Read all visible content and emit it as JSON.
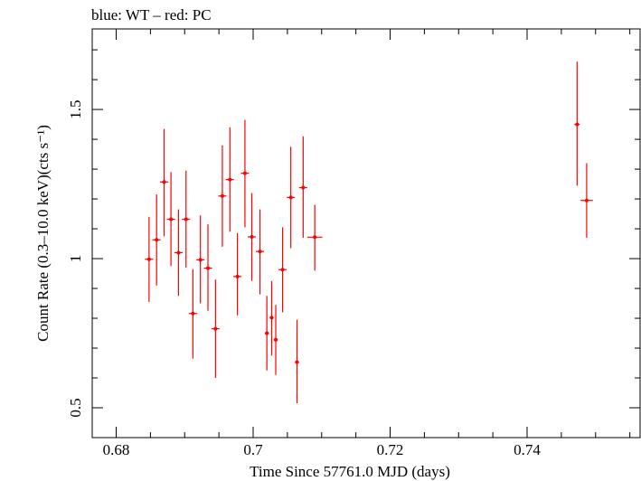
{
  "chart_data": {
    "type": "scatter",
    "title": "blue: WT – red: PC",
    "xlabel": "Time Since 57761.0 MJD (days)",
    "ylabel": "Count Rate (0.3–10.0 keV)(cts s⁻¹)",
    "xlim": [
      0.6765,
      0.7565
    ],
    "ylim": [
      0.4,
      1.77
    ],
    "x_ticks": [
      {
        "value": 0.68,
        "label": "0.68"
      },
      {
        "value": 0.7,
        "label": "0.7"
      },
      {
        "value": 0.72,
        "label": "0.72"
      },
      {
        "value": 0.74,
        "label": "0.74"
      }
    ],
    "y_ticks": [
      {
        "value": 0.5,
        "label": "0.5"
      },
      {
        "value": 1.0,
        "label": "1"
      },
      {
        "value": 1.5,
        "label": "1.5"
      }
    ],
    "grid": false,
    "series": [
      {
        "color": "#ff0000",
        "points": [
          {
            "x": 0.6848,
            "y": 0.998,
            "xerr": 0.0006,
            "ylo": 0.855,
            "yhi": 1.14
          },
          {
            "x": 0.6859,
            "y": 1.063,
            "xerr": 0.0006,
            "ylo": 0.91,
            "yhi": 1.215
          },
          {
            "x": 0.687,
            "y": 1.257,
            "xerr": 0.0006,
            "ylo": 1.075,
            "yhi": 1.435
          },
          {
            "x": 0.688,
            "y": 1.132,
            "xerr": 0.0006,
            "ylo": 0.975,
            "yhi": 1.29
          },
          {
            "x": 0.6891,
            "y": 1.02,
            "xerr": 0.0006,
            "ylo": 0.875,
            "yhi": 1.165
          },
          {
            "x": 0.6902,
            "y": 1.132,
            "xerr": 0.0006,
            "ylo": 0.97,
            "yhi": 1.295
          },
          {
            "x": 0.6912,
            "y": 0.816,
            "xerr": 0.0006,
            "ylo": 0.665,
            "yhi": 0.965
          },
          {
            "x": 0.6923,
            "y": 0.996,
            "xerr": 0.0006,
            "ylo": 0.85,
            "yhi": 1.145
          },
          {
            "x": 0.6934,
            "y": 0.968,
            "xerr": 0.0006,
            "ylo": 0.825,
            "yhi": 1.115
          },
          {
            "x": 0.6945,
            "y": 0.765,
            "xerr": 0.0006,
            "ylo": 0.6,
            "yhi": 0.93
          },
          {
            "x": 0.6955,
            "y": 1.21,
            "xerr": 0.0006,
            "ylo": 1.04,
            "yhi": 1.38
          },
          {
            "x": 0.6966,
            "y": 1.265,
            "xerr": 0.0006,
            "ylo": 1.09,
            "yhi": 1.44
          },
          {
            "x": 0.6977,
            "y": 0.94,
            "xerr": 0.0006,
            "ylo": 0.81,
            "yhi": 1.085
          },
          {
            "x": 0.6988,
            "y": 1.286,
            "xerr": 0.0006,
            "ylo": 1.105,
            "yhi": 1.465
          },
          {
            "x": 0.6998,
            "y": 1.073,
            "xerr": 0.0006,
            "ylo": 0.925,
            "yhi": 1.22
          },
          {
            "x": 0.701,
            "y": 1.024,
            "xerr": 0.0006,
            "ylo": 0.88,
            "yhi": 1.165
          },
          {
            "x": 0.702,
            "y": 0.75,
            "xerr": 0.0003,
            "ylo": 0.625,
            "yhi": 0.875
          },
          {
            "x": 0.7027,
            "y": 0.802,
            "xerr": 0.0003,
            "ylo": 0.675,
            "yhi": 0.925
          },
          {
            "x": 0.7033,
            "y": 0.728,
            "xerr": 0.0003,
            "ylo": 0.61,
            "yhi": 0.845
          },
          {
            "x": 0.7043,
            "y": 0.963,
            "xerr": 0.0006,
            "ylo": 0.82,
            "yhi": 1.105
          },
          {
            "x": 0.7055,
            "y": 1.205,
            "xerr": 0.0006,
            "ylo": 1.035,
            "yhi": 1.375
          },
          {
            "x": 0.7064,
            "y": 0.653,
            "xerr": 0.0003,
            "ylo": 0.515,
            "yhi": 0.795
          },
          {
            "x": 0.7073,
            "y": 1.238,
            "xerr": 0.0006,
            "ylo": 1.07,
            "yhi": 1.41
          },
          {
            "x": 0.709,
            "y": 1.072,
            "xerr": 0.0011,
            "ylo": 0.96,
            "yhi": 1.18
          },
          {
            "x": 0.7473,
            "y": 1.45,
            "xerr": 0.0004,
            "ylo": 1.245,
            "yhi": 1.66
          },
          {
            "x": 0.7487,
            "y": 1.195,
            "xerr": 0.0009,
            "ylo": 1.07,
            "yhi": 1.32
          }
        ]
      }
    ]
  }
}
